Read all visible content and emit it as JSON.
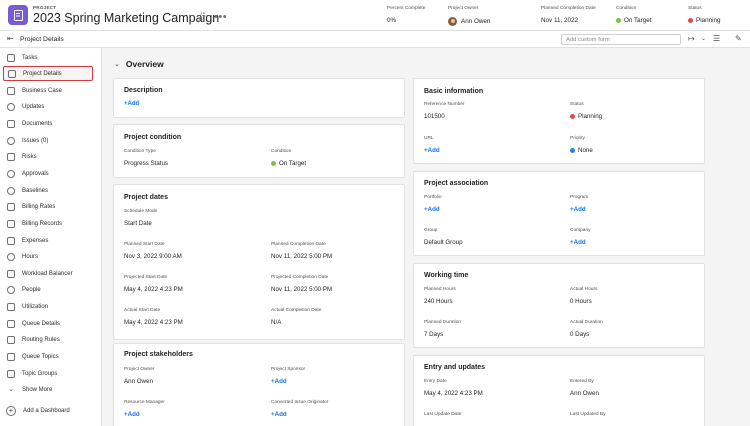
{
  "header": {
    "kind": "PROJECT",
    "title": "2023 Spring Marketing Campaign",
    "more": "•••",
    "fields": {
      "percent_complete": {
        "label": "Percent Complete",
        "value": "0%"
      },
      "project_owner": {
        "label": "Project Owner",
        "value": "Ann Owen"
      },
      "planned_completion": {
        "label": "Planned Completion Date",
        "value": "Nov 11, 2022"
      },
      "condition": {
        "label": "Condition",
        "value": "On Target"
      },
      "status": {
        "label": "Status",
        "value": "Planning"
      }
    }
  },
  "subheader": {
    "title": "Project Details",
    "custom_form_placeholder": "Add custom form"
  },
  "sidebar": {
    "items": [
      {
        "label": "Tasks"
      },
      {
        "label": "Project Details"
      },
      {
        "label": "Business Case"
      },
      {
        "label": "Updates"
      },
      {
        "label": "Documents"
      },
      {
        "label": "Issues (0)"
      },
      {
        "label": "Risks"
      },
      {
        "label": "Approvals"
      },
      {
        "label": "Baselines"
      },
      {
        "label": "Billing Rates"
      },
      {
        "label": "Billing Records"
      },
      {
        "label": "Expenses"
      },
      {
        "label": "Hours"
      },
      {
        "label": "Workload Balancer"
      },
      {
        "label": "People"
      },
      {
        "label": "Utilization"
      },
      {
        "label": "Queue Details"
      },
      {
        "label": "Routing Rules"
      },
      {
        "label": "Queue Topics"
      },
      {
        "label": "Topic Groups"
      },
      {
        "label": "Show More"
      }
    ],
    "add_dashboard": "Add a Dashboard"
  },
  "overview": {
    "title": "Overview",
    "description": {
      "title": "Description",
      "add": "+Add"
    },
    "condition": {
      "title": "Project condition",
      "type_label": "Condition Type",
      "type_value": "Progress Status",
      "cond_label": "Condition",
      "cond_value": "On Target"
    },
    "dates": {
      "title": "Project dates",
      "schedule_mode_label": "Schedule Mode",
      "schedule_mode_value": "Start Date",
      "planned_start_label": "Planned Start Date",
      "planned_start_value": "Nov 3, 2022 9:00 AM",
      "planned_completion_label": "Planned Completion Date",
      "planned_completion_value": "Nov 11, 2022 5:00 PM",
      "projected_start_label": "Projected Start Date",
      "projected_start_value": "May 4, 2022 4:23 PM",
      "projected_completion_label": "Projected Completion Date",
      "projected_completion_value": "Nov 11, 2022 5:00 PM",
      "actual_start_label": "Actual Start Date",
      "actual_start_value": "May 4, 2022 4:23 PM",
      "actual_completion_label": "Actual Completion Date",
      "actual_completion_value": "N/A"
    },
    "stakeholders": {
      "title": "Project stakeholders",
      "owner_label": "Project Owner",
      "owner_value": "Ann Owen",
      "sponsor_label": "Project Sponsor",
      "sponsor_value": "+Add",
      "resource_label": "Resource Manager",
      "resource_value": "+Add",
      "originator_label": "Converted Issue Originator",
      "originator_value": "+Add"
    },
    "basic": {
      "title": "Basic information",
      "ref_label": "Reference Number",
      "ref_value": "101500",
      "status_label": "Status",
      "status_value": "Planning",
      "url_label": "URL",
      "url_value": "+Add",
      "priority_label": "Priority",
      "priority_value": "None"
    },
    "association": {
      "title": "Project association",
      "portfolio_label": "Portfolio",
      "portfolio_value": "+Add",
      "program_label": "Program",
      "program_value": "+Add",
      "group_label": "Group",
      "group_value": "Default Group",
      "company_label": "Company",
      "company_value": "+Add"
    },
    "working_time": {
      "title": "Working time",
      "planned_hours_label": "Planned Hours",
      "planned_hours_value": "240 Hours",
      "actual_hours_label": "Actual Hours",
      "actual_hours_value": "0 Hours",
      "planned_duration_label": "Planned Duration",
      "planned_duration_value": "7 Days",
      "actual_duration_label": "Actual Duration",
      "actual_duration_value": "0 Days"
    },
    "entry": {
      "title": "Entry and updates",
      "entry_date_label": "Entry Date",
      "entry_date_value": "May 4, 2022 4:23 PM",
      "entered_by_label": "Entered By",
      "entered_by_value": "Ann Owen",
      "last_update_label": "Last Update Date",
      "last_updated_by_label": "Last Updated By"
    }
  },
  "colors": {
    "accent": "#1473e6",
    "project_icon": "#7a5cd0",
    "on_target": "#7cc33f",
    "planning": "#e34850",
    "none_priority": "#2680eb",
    "active_border": "#d7373f"
  },
  "icons": {
    "project": "project-document-icon",
    "star": "star-icon",
    "collapse": "collapse-panel-icon",
    "share": "share-icon",
    "layout": "layout-icon",
    "edit": "edit-pencil-icon"
  }
}
